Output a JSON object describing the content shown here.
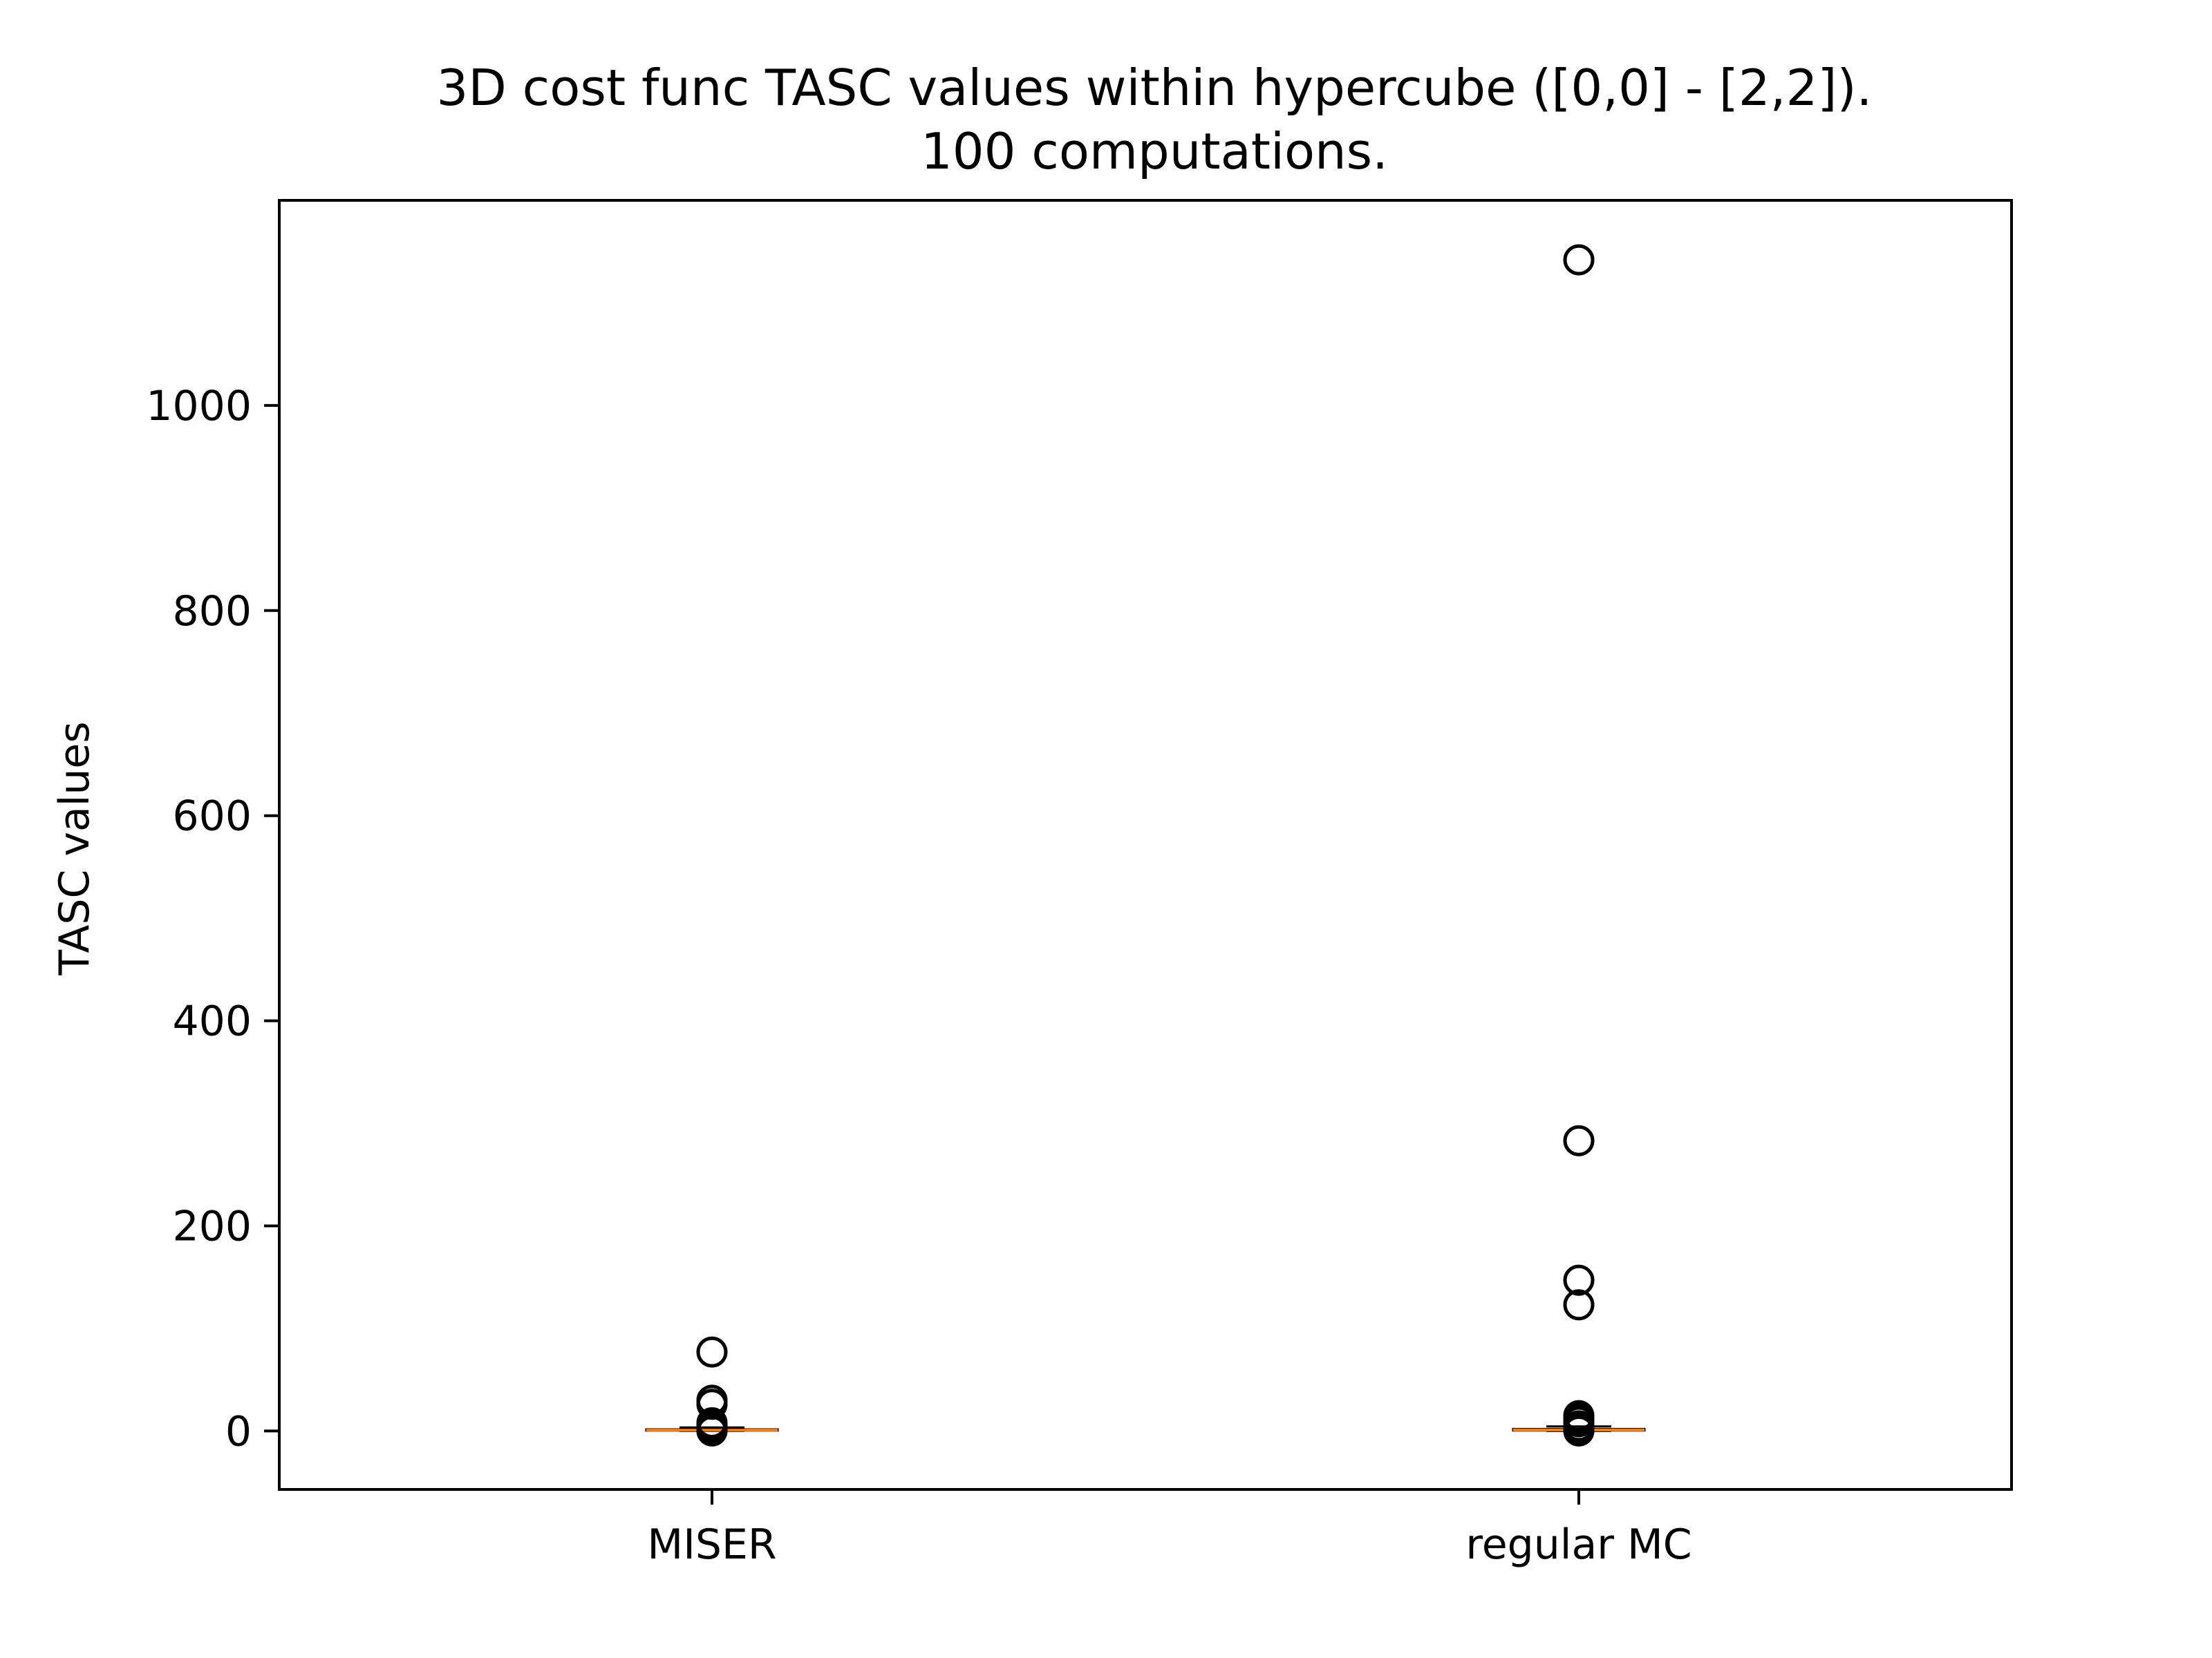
{
  "chart_data": {
    "type": "box",
    "title_lines": [
      "3D cost func TASC values within hypercube ([0,0] - [2,2]).",
      "100 computations."
    ],
    "xlabel": "",
    "ylabel": "TASC values",
    "ylim": [
      -57,
      1200
    ],
    "yticks": [
      0,
      200,
      400,
      600,
      800,
      1000
    ],
    "categories": [
      "MISER",
      "regular MC"
    ],
    "boxes": [
      {
        "label": "MISER",
        "q1": 0.3,
        "median": 0.8,
        "q3": 1.6,
        "whisker_low": 0.0,
        "whisker_high": 3.5,
        "outliers": [
          77,
          30,
          26,
          8,
          5,
          3,
          1,
          0
        ]
      },
      {
        "label": "regular MC",
        "q1": 0.4,
        "median": 1.0,
        "q3": 2.0,
        "whisker_low": 0.0,
        "whisker_high": 4.5,
        "outliers": [
          1142,
          283,
          147,
          123,
          15,
          12,
          9,
          5,
          2,
          0
        ]
      }
    ],
    "colors": {
      "box": "#000000",
      "median": "#ff7f0e",
      "flier": "#000000"
    }
  }
}
